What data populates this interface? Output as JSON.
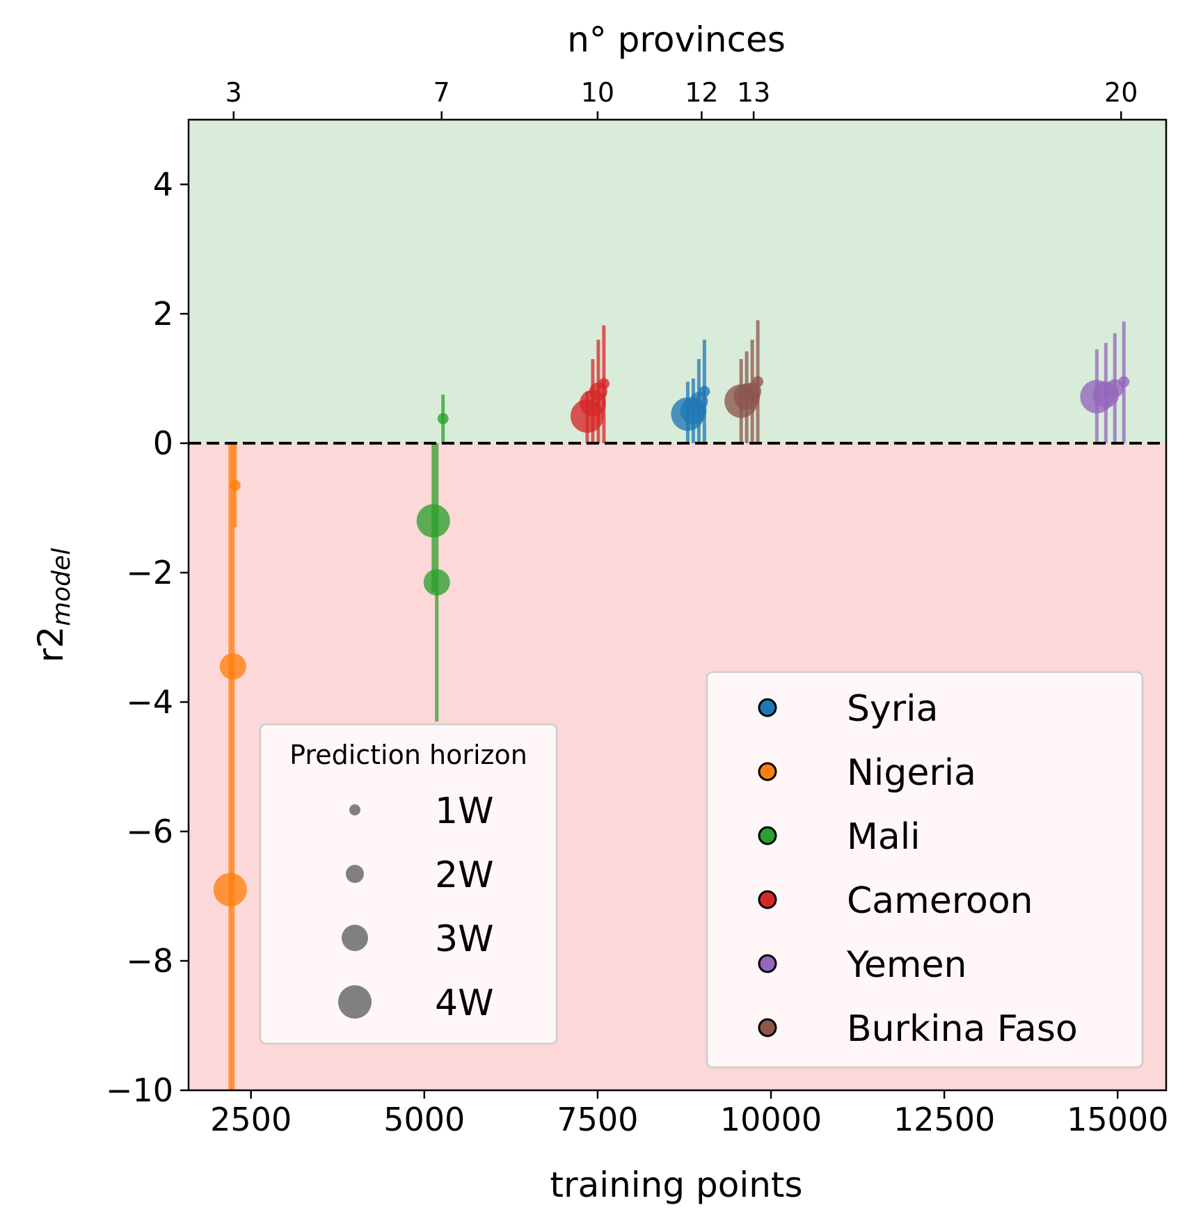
{
  "chart_data": {
    "type": "scatter",
    "xlabel": "training points",
    "ylabel_main": "r2",
    "ylabel_sub": "model",
    "top_xlabel": "n° provinces",
    "xlim": [
      1600,
      15700
    ],
    "ylim": [
      -10,
      5
    ],
    "x_ticks": [
      2500,
      5000,
      7500,
      10000,
      12500,
      15000
    ],
    "x_tick_labels": [
      "2500",
      "5000",
      "7500",
      "10000",
      "12500",
      "15000"
    ],
    "y_ticks": [
      -10,
      -8,
      -6,
      -4,
      -2,
      0,
      2,
      4
    ],
    "y_tick_labels": [
      "−10",
      "−8",
      "−6",
      "−4",
      "−2",
      "0",
      "2",
      "4"
    ],
    "top_ticks": [
      {
        "x": 2250,
        "label": "3"
      },
      {
        "x": 5250,
        "label": "7"
      },
      {
        "x": 7500,
        "label": "10"
      },
      {
        "x": 9000,
        "label": "12"
      },
      {
        "x": 9750,
        "label": "13"
      },
      {
        "x": 15050,
        "label": "20"
      }
    ],
    "regions": [
      {
        "from": 0,
        "to": 5,
        "color": "#d9ecd9"
      },
      {
        "from": -10,
        "to": 0,
        "color": "#fdd8d8"
      }
    ],
    "reference_line_y": 0,
    "series": [
      {
        "name": "Syria",
        "color": "#1f77b4",
        "points": [
          {
            "x": 8800,
            "y": 0.45,
            "h": 4,
            "bar": [
              0,
              0.95
            ]
          },
          {
            "x": 8880,
            "y": 0.5,
            "h": 3,
            "bar": [
              0,
              1.0
            ]
          },
          {
            "x": 8960,
            "y": 0.65,
            "h": 2,
            "bar": [
              0,
              1.3
            ]
          },
          {
            "x": 9040,
            "y": 0.8,
            "h": 1,
            "bar": [
              0,
              1.6
            ]
          }
        ]
      },
      {
        "name": "Nigeria",
        "color": "#ff7f0e",
        "points": [
          {
            "x": 2200,
            "y": -6.9,
            "h": 4,
            "bar": [
              -10,
              0
            ]
          },
          {
            "x": 2240,
            "y": -3.45,
            "h": 3,
            "bar": [
              -10,
              0
            ]
          },
          {
            "x": 2270,
            "y": -0.65,
            "h": 1,
            "bar": [
              -1.3,
              0
            ]
          }
        ]
      },
      {
        "name": "Mali",
        "color": "#2ca02c",
        "points": [
          {
            "x": 5130,
            "y": -1.2,
            "h": 4,
            "bar": [
              -2.3,
              0
            ]
          },
          {
            "x": 5180,
            "y": -2.15,
            "h": 3,
            "bar": [
              -4.3,
              0
            ]
          },
          {
            "x": 5270,
            "y": 0.38,
            "h": 1,
            "bar": [
              0,
              0.75
            ]
          }
        ]
      },
      {
        "name": "Cameroon",
        "color": "#d62728",
        "points": [
          {
            "x": 7350,
            "y": 0.42,
            "h": 4,
            "bar": [
              0,
              0.8
            ]
          },
          {
            "x": 7430,
            "y": 0.62,
            "h": 3,
            "bar": [
              0,
              1.3
            ]
          },
          {
            "x": 7510,
            "y": 0.8,
            "h": 2,
            "bar": [
              0,
              1.6
            ]
          },
          {
            "x": 7590,
            "y": 0.92,
            "h": 1,
            "bar": [
              0,
              1.82
            ]
          }
        ]
      },
      {
        "name": "Yemen",
        "color": "#9467bd",
        "points": [
          {
            "x": 14700,
            "y": 0.72,
            "h": 4,
            "bar": [
              0,
              1.45
            ]
          },
          {
            "x": 14830,
            "y": 0.75,
            "h": 3,
            "bar": [
              0,
              1.55
            ]
          },
          {
            "x": 14960,
            "y": 0.85,
            "h": 2,
            "bar": [
              0,
              1.7
            ]
          },
          {
            "x": 15090,
            "y": 0.95,
            "h": 1,
            "bar": [
              0,
              1.88
            ]
          }
        ]
      },
      {
        "name": "Burkina Faso",
        "color": "#8c564b",
        "points": [
          {
            "x": 9570,
            "y": 0.65,
            "h": 4,
            "bar": [
              0,
              1.3
            ]
          },
          {
            "x": 9650,
            "y": 0.72,
            "h": 3,
            "bar": [
              0,
              1.42
            ]
          },
          {
            "x": 9730,
            "y": 0.8,
            "h": 2,
            "bar": [
              0,
              1.6
            ]
          },
          {
            "x": 9810,
            "y": 0.95,
            "h": 1,
            "bar": [
              0,
              1.9
            ]
          }
        ]
      }
    ],
    "size_legend": {
      "title": "Prediction horizon",
      "items": [
        {
          "label": "1W",
          "h": 1
        },
        {
          "label": "2W",
          "h": 2
        },
        {
          "label": "3W",
          "h": 3
        },
        {
          "label": "4W",
          "h": 4
        }
      ],
      "marker_color": "#808080"
    },
    "legend_placement": "lower-right",
    "size_legend_placement": "lower-left",
    "grid": false
  }
}
